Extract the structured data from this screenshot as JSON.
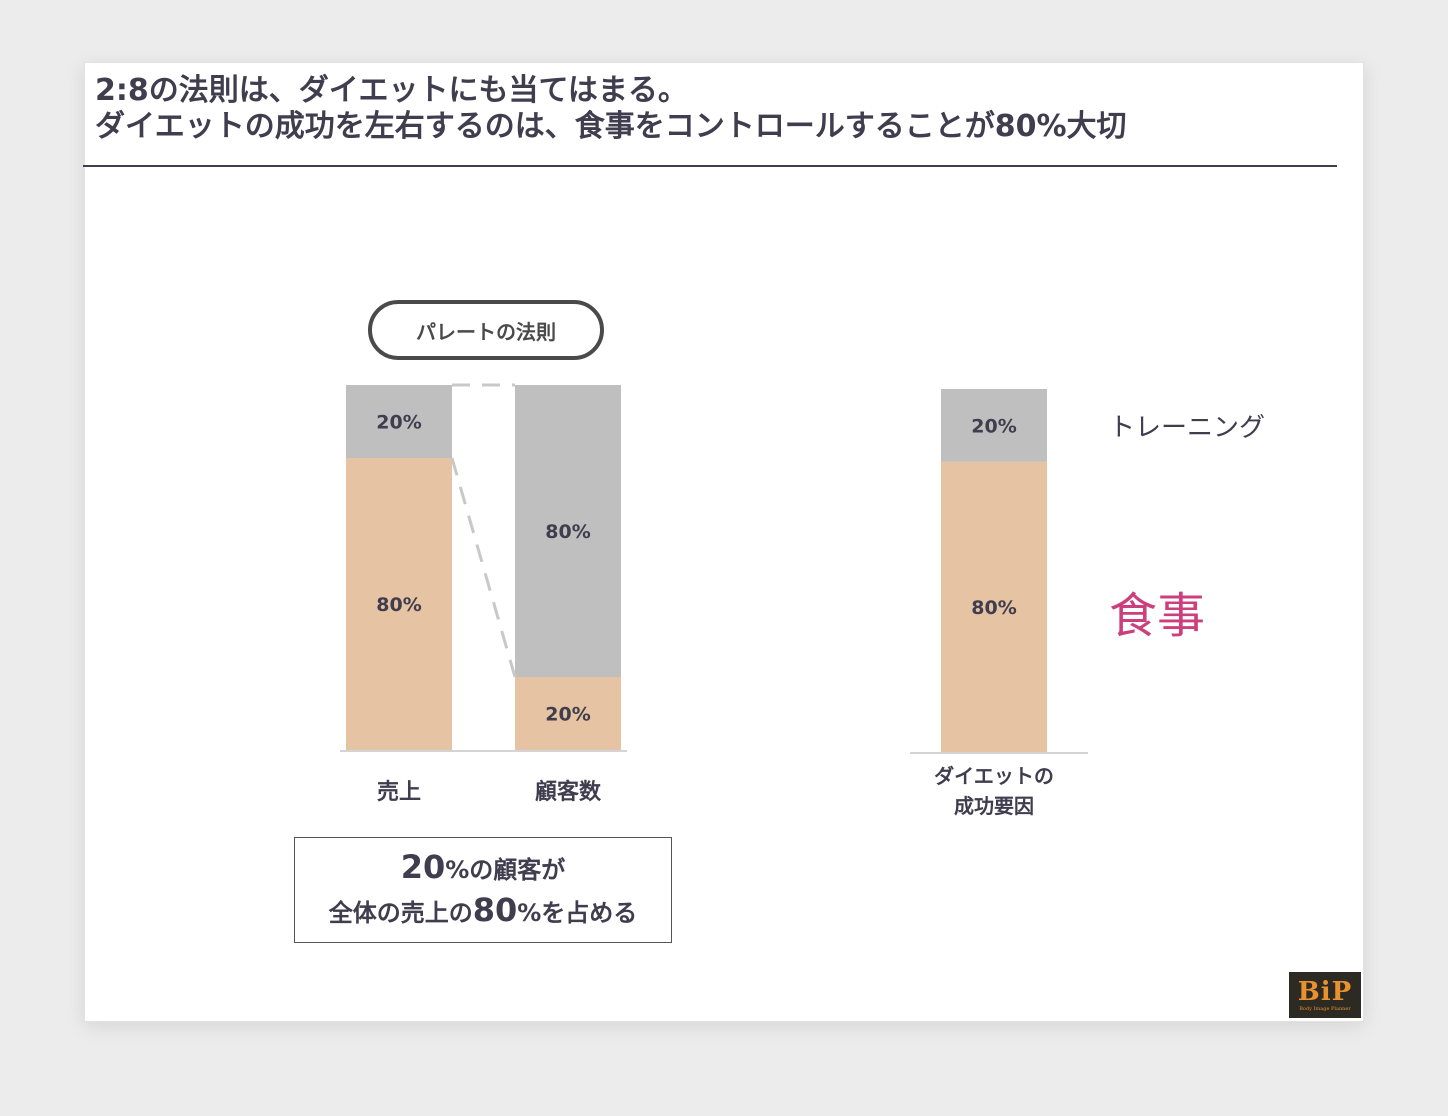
{
  "title": {
    "line1": "2:8の法則は、ダイエットにも当てはまる。",
    "line2": "ダイエットの成功を左右するのは、食事をコントロールすることが80%大切"
  },
  "pareto_pill": "パレートの法則",
  "note": {
    "line1_num": "20",
    "line1_rest": "%の顧客が",
    "line2_pre": "全体の売上の",
    "line2_num": "80",
    "line2_rest": "%を占める"
  },
  "legend": {
    "training": "トレーニング",
    "food": "食事"
  },
  "logo": {
    "mark": "BiP",
    "sub": "Body Image Planner"
  },
  "colors": {
    "gray_segment": "#bfbfbf",
    "peach_segment": "#e6c3a2",
    "text": "#3f3d4e",
    "accent_pink": "#cc3f7c"
  },
  "chart_data": [
    {
      "type": "bar",
      "stacked": true,
      "categories": [
        "売上",
        "顧客数"
      ],
      "series": [
        {
          "values": [
            80,
            20
          ],
          "labels": [
            "80%",
            "20%"
          ],
          "color": "#e6c3a2"
        },
        {
          "values": [
            20,
            80
          ],
          "labels": [
            "20%",
            "80%"
          ],
          "color": "#bfbfbf"
        }
      ],
      "ylim": [
        0,
        100
      ],
      "grid": false,
      "connector": "dashed"
    },
    {
      "type": "bar",
      "stacked": true,
      "categories": [
        "ダイエットの成功要因"
      ],
      "category_lines": [
        "ダイエットの",
        "成功要因"
      ],
      "series": [
        {
          "name": "食事",
          "values": [
            80
          ],
          "labels": [
            "80%"
          ],
          "color": "#e6c3a2"
        },
        {
          "name": "トレーニング",
          "values": [
            20
          ],
          "labels": [
            "20%"
          ],
          "color": "#bfbfbf"
        }
      ],
      "ylim": [
        0,
        100
      ],
      "grid": false,
      "legend": "right"
    }
  ]
}
